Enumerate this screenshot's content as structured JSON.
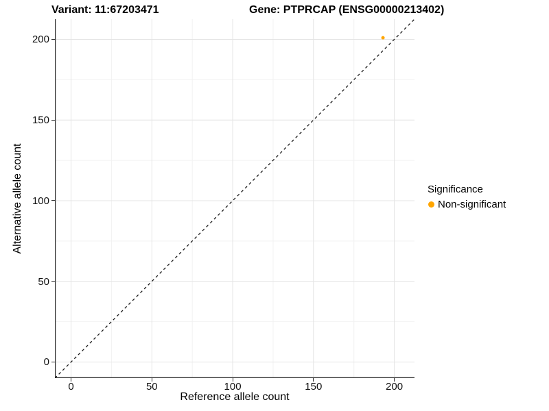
{
  "figure": {
    "title_left": "Variant: 11:67203471",
    "title_right": "Gene: PTPRCAP (ENSG00000213402)"
  },
  "chart_data": {
    "type": "scatter",
    "title": "Variant: 11:67203471   Gene: PTPRCAP (ENSG00000213402)",
    "xlabel": "Reference allele count",
    "ylabel": "Alternative allele count",
    "xlim": [
      -10,
      212.5
    ],
    "ylim": [
      -10,
      212.5
    ],
    "xticks": [
      0,
      50,
      100,
      150,
      200
    ],
    "yticks": [
      0,
      50,
      100,
      150,
      200
    ],
    "xminor": [
      25,
      75,
      125,
      175
    ],
    "yminor": [
      25,
      75,
      125,
      175
    ],
    "grid": "major+minor",
    "reference_line": {
      "type": "identity",
      "color": "#1a1a1a",
      "dash": [
        4,
        4
      ],
      "width": 1.3
    },
    "series": [
      {
        "name": "Non-significant",
        "color": "#FFA500",
        "marker_radius": 2.5,
        "points": [
          {
            "x": 193,
            "y": 201
          }
        ]
      }
    ],
    "legend": {
      "title": "Significance",
      "position": "right",
      "items": [
        {
          "label": "Non-significant",
          "color": "#FFA500"
        }
      ]
    },
    "colors": {
      "background": "#FFFFFF",
      "grid_major": "#E4E4E4",
      "grid_minor": "#F2F2F2",
      "axis_line": "#2A2A2A",
      "tick_text": "#111111"
    }
  }
}
